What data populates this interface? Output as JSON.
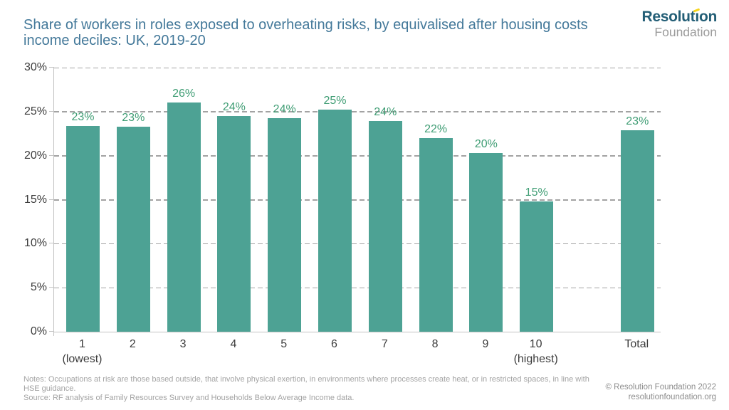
{
  "header": {
    "title": "Share of workers in roles exposed to overheating risks, by equivalised after housing costs income deciles: UK, 2019-20",
    "logo": {
      "name_pre": "Resolut",
      "name_i": "ı",
      "name_post": "on",
      "full_name": "Resolution",
      "foundation": "Foundation"
    }
  },
  "chart_data": {
    "type": "bar",
    "title": "Share of workers in roles exposed to overheating risks, by equivalised after housing costs income deciles: UK, 2019-20",
    "categories": [
      {
        "label": "1",
        "sublabel": "(lowest)",
        "gap_before": false
      },
      {
        "label": "2",
        "sublabel": "",
        "gap_before": false
      },
      {
        "label": "3",
        "sublabel": "",
        "gap_before": false
      },
      {
        "label": "4",
        "sublabel": "",
        "gap_before": false
      },
      {
        "label": "5",
        "sublabel": "",
        "gap_before": false
      },
      {
        "label": "6",
        "sublabel": "",
        "gap_before": false
      },
      {
        "label": "7",
        "sublabel": "",
        "gap_before": false
      },
      {
        "label": "8",
        "sublabel": "",
        "gap_before": false
      },
      {
        "label": "9",
        "sublabel": "",
        "gap_before": false
      },
      {
        "label": "10",
        "sublabel": "(highest)",
        "gap_before": false
      },
      {
        "label": "Total",
        "sublabel": "",
        "gap_before": true
      }
    ],
    "values": [
      23.4,
      23.3,
      26.0,
      24.5,
      24.3,
      25.2,
      23.9,
      22.0,
      20.3,
      14.8,
      22.9
    ],
    "data_labels": [
      "23%",
      "23%",
      "26%",
      "24%",
      "24%",
      "25%",
      "24%",
      "22%",
      "20%",
      "15%",
      "23%"
    ],
    "xlabel": "",
    "ylabel": "",
    "ylim": [
      0,
      30
    ],
    "ytick_step": 5,
    "ytick_labels": [
      "0%",
      "5%",
      "10%",
      "15%",
      "20%",
      "25%",
      "30%"
    ],
    "grid": "horizontal-dashed",
    "legend": "none"
  },
  "colors": {
    "bar": "#4da294",
    "data_label": "#3f9d74",
    "title_blue": "#44799a",
    "logo_dark": "#235e76",
    "logo_accent_yellow": "#f6d41c",
    "axis_gray": "#c2c2c2",
    "gridline_gray": "#a3a3a3"
  },
  "footer": {
    "notes": "Notes: Occupations at risk are those based outside, that involve physical exertion, in environments where processes create heat, or in restricted spaces, in line with HSE guidance.",
    "source": "Source: RF analysis of Family Resources Survey and Households Below Average Income data.",
    "copyright": "© Resolution Foundation 2022",
    "website": "resolutionfoundation.org"
  }
}
